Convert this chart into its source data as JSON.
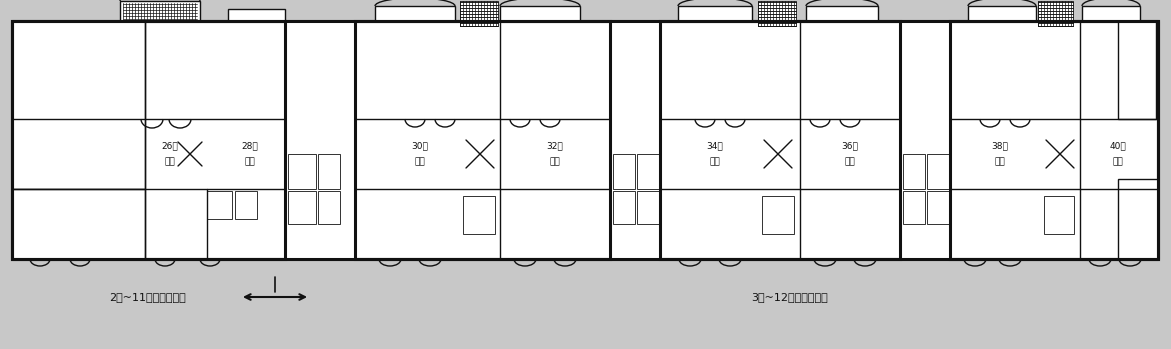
{
  "bg_color": "#f0f0f0",
  "fig_bg": "#c8c8c8",
  "line_color": "#111111",
  "text_color": "#111111",
  "white": "#ffffff",
  "text_bottom_left": "2楼~11楼門牌對照表",
  "text_bottom_right": "3楼~12楼門牌對照表",
  "unit_labels": [
    "26栋\n住宅",
    "28栋\n住宅",
    "30栋\n住宅",
    "32栋\n住宅",
    "34栋\n住宅",
    "36栋\n住宅",
    "38栋\n住宅",
    "40栋\n住宅"
  ],
  "font_size": 6.5,
  "lw_thin": 0.6,
  "lw_med": 1.0,
  "lw_thick": 2.2
}
